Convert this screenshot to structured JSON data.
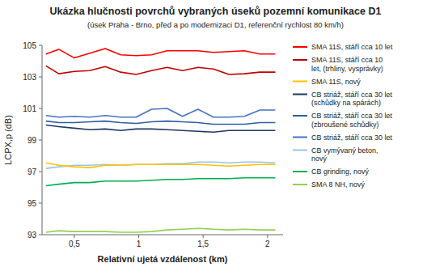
{
  "chart_data": {
    "type": "line",
    "title": "Ukázka hlučnosti povrchů vybraných úseků pozemní komunikace D1",
    "subtitle": "(úsek Praha - Brno, před a po modernizaci D1, referenční rychlost 80 km/h)",
    "x_label": "Relativní ujetá vzdálenost (km)",
    "y_label": "LCPX,p (dB)",
    "xlim": [
      0.25,
      2.12
    ],
    "ylim": [
      93,
      105
    ],
    "xticks": [
      {
        "value": 0.5,
        "label": "0,5"
      },
      1,
      {
        "value": 1.5,
        "label": "1,5"
      },
      2
    ],
    "yticks": [
      93,
      95,
      97,
      99,
      101,
      103,
      105
    ],
    "grid": false,
    "legend": "right",
    "x": [
      0.28,
      0.38,
      0.5,
      0.62,
      0.74,
      0.86,
      0.98,
      1.1,
      1.22,
      1.34,
      1.46,
      1.58,
      1.7,
      1.82,
      1.94,
      2.06
    ],
    "series": [
      {
        "name": "SMA 11S, stáří cca 10 let",
        "color": "#ff0000",
        "values": [
          104.45,
          104.75,
          104.2,
          104.5,
          104.8,
          104.4,
          104.35,
          104.4,
          104.65,
          104.65,
          104.65,
          104.55,
          104.6,
          104.65,
          104.45,
          104.45
        ]
      },
      {
        "name": "SMA 11S, stáří cca 10\nlet, (trhliny, vysprávky)",
        "color": "#c00000",
        "values": [
          103.7,
          103.2,
          103.35,
          103.4,
          103.65,
          103.3,
          103.15,
          103.4,
          103.6,
          103.4,
          103.6,
          103.5,
          103.15,
          103.2,
          103.3,
          103.3
        ]
      },
      {
        "name": "SMA 11S, nový",
        "color": "#ffc000",
        "values": [
          97.55,
          97.4,
          97.3,
          97.25,
          97.4,
          97.4,
          97.45,
          97.45,
          97.45,
          97.45,
          97.45,
          97.4,
          97.35,
          97.4,
          97.45,
          97.45
        ]
      },
      {
        "name": "CB striáž, stáří cca 30 let\n(schůdky na spárách)",
        "color": "#1f3864",
        "values": [
          99.95,
          99.85,
          99.75,
          99.65,
          99.7,
          99.6,
          99.7,
          99.7,
          99.65,
          99.6,
          99.55,
          99.5,
          99.6,
          99.6,
          99.6,
          99.6
        ]
      },
      {
        "name": "CB striáž, stáří cca 30 let\n(zbroušené schůdky)",
        "color": "#2e5fa3",
        "values": [
          100.2,
          100.1,
          100.1,
          100.15,
          100.2,
          100.1,
          100.05,
          100.15,
          100.2,
          100.15,
          100.1,
          100.0,
          100.0,
          100.0,
          100.1,
          100.1
        ]
      },
      {
        "name": "CB striáž, stáří cca 30 let",
        "color": "#4472c4",
        "values": [
          100.55,
          100.45,
          100.5,
          100.45,
          100.55,
          100.45,
          100.45,
          100.95,
          101.0,
          100.5,
          100.95,
          100.45,
          100.45,
          100.5,
          100.9,
          100.9
        ]
      },
      {
        "name": "CB vymývaný beton,\nnový",
        "color": "#9dc3e6",
        "values": [
          97.2,
          97.3,
          97.4,
          97.4,
          97.45,
          97.4,
          97.45,
          97.45,
          97.5,
          97.5,
          97.6,
          97.6,
          97.55,
          97.6,
          97.6,
          97.55
        ]
      },
      {
        "name": "CB grinding, nový",
        "color": "#00b050",
        "values": [
          96.1,
          96.2,
          96.3,
          96.3,
          96.4,
          96.4,
          96.4,
          96.45,
          96.5,
          96.5,
          96.55,
          96.55,
          96.55,
          96.6,
          96.6,
          96.6
        ]
      },
      {
        "name": "SMA 8 NH, nový",
        "color": "#92d050",
        "values": [
          93.15,
          93.25,
          93.2,
          93.2,
          93.2,
          93.15,
          93.15,
          93.2,
          93.3,
          93.35,
          93.4,
          93.35,
          93.3,
          93.35,
          93.3,
          93.3
        ]
      }
    ]
  }
}
